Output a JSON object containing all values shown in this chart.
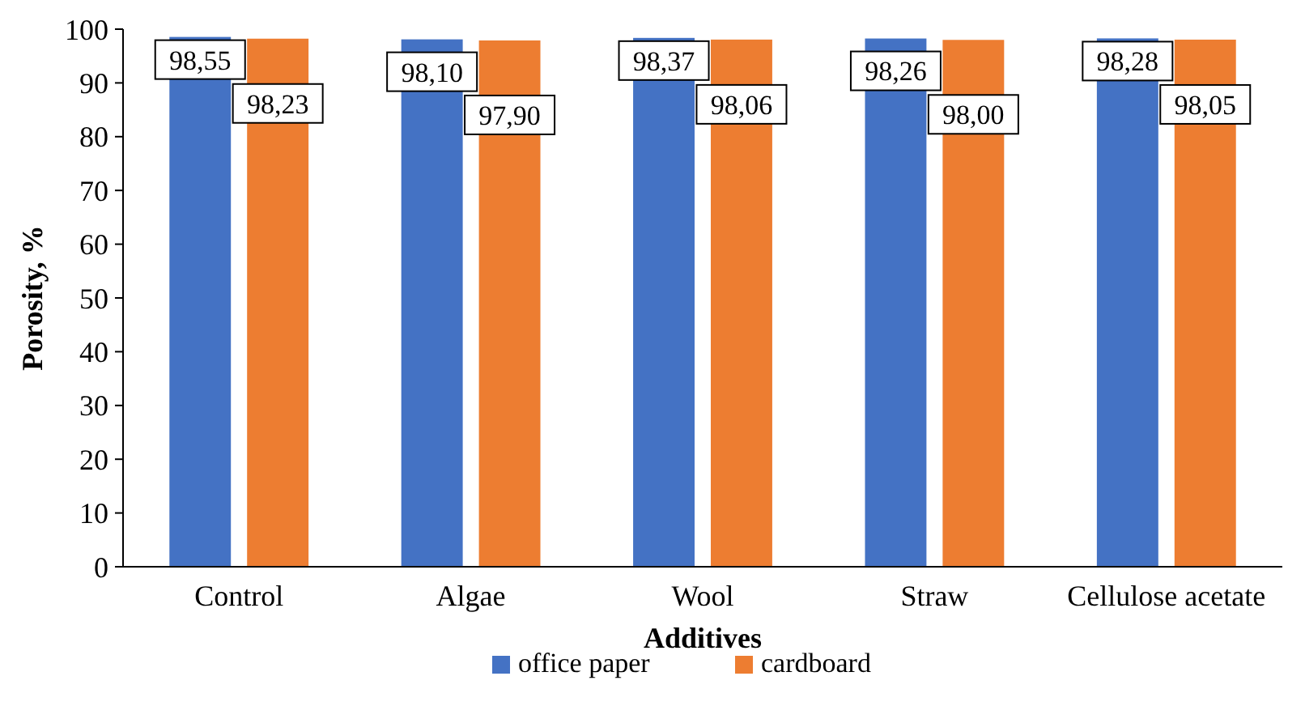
{
  "chart_data": {
    "type": "bar",
    "xlabel": "Additives",
    "ylabel": "Porosity, %",
    "categories": [
      "Control",
      "Algae",
      "Wool",
      "Straw",
      "Cellulose acetate"
    ],
    "series": [
      {
        "name": "office paper",
        "color": "#4472c4",
        "values": [
          98.55,
          98.1,
          98.37,
          98.26,
          98.28
        ],
        "value_labels": [
          "98,55",
          "98,10",
          "98,37",
          "98,26",
          "98,28"
        ]
      },
      {
        "name": "cardboard",
        "color": "#ed7d31",
        "values": [
          98.23,
          97.9,
          98.06,
          98.0,
          98.05
        ],
        "value_labels": [
          "98,23",
          "97,90",
          "98,06",
          "98,00",
          "98,05"
        ]
      }
    ],
    "ylim": [
      0,
      100
    ],
    "yticks": [
      0,
      10,
      20,
      30,
      40,
      50,
      60,
      70,
      80,
      90,
      100
    ],
    "grid": false,
    "legend": "bottom"
  }
}
